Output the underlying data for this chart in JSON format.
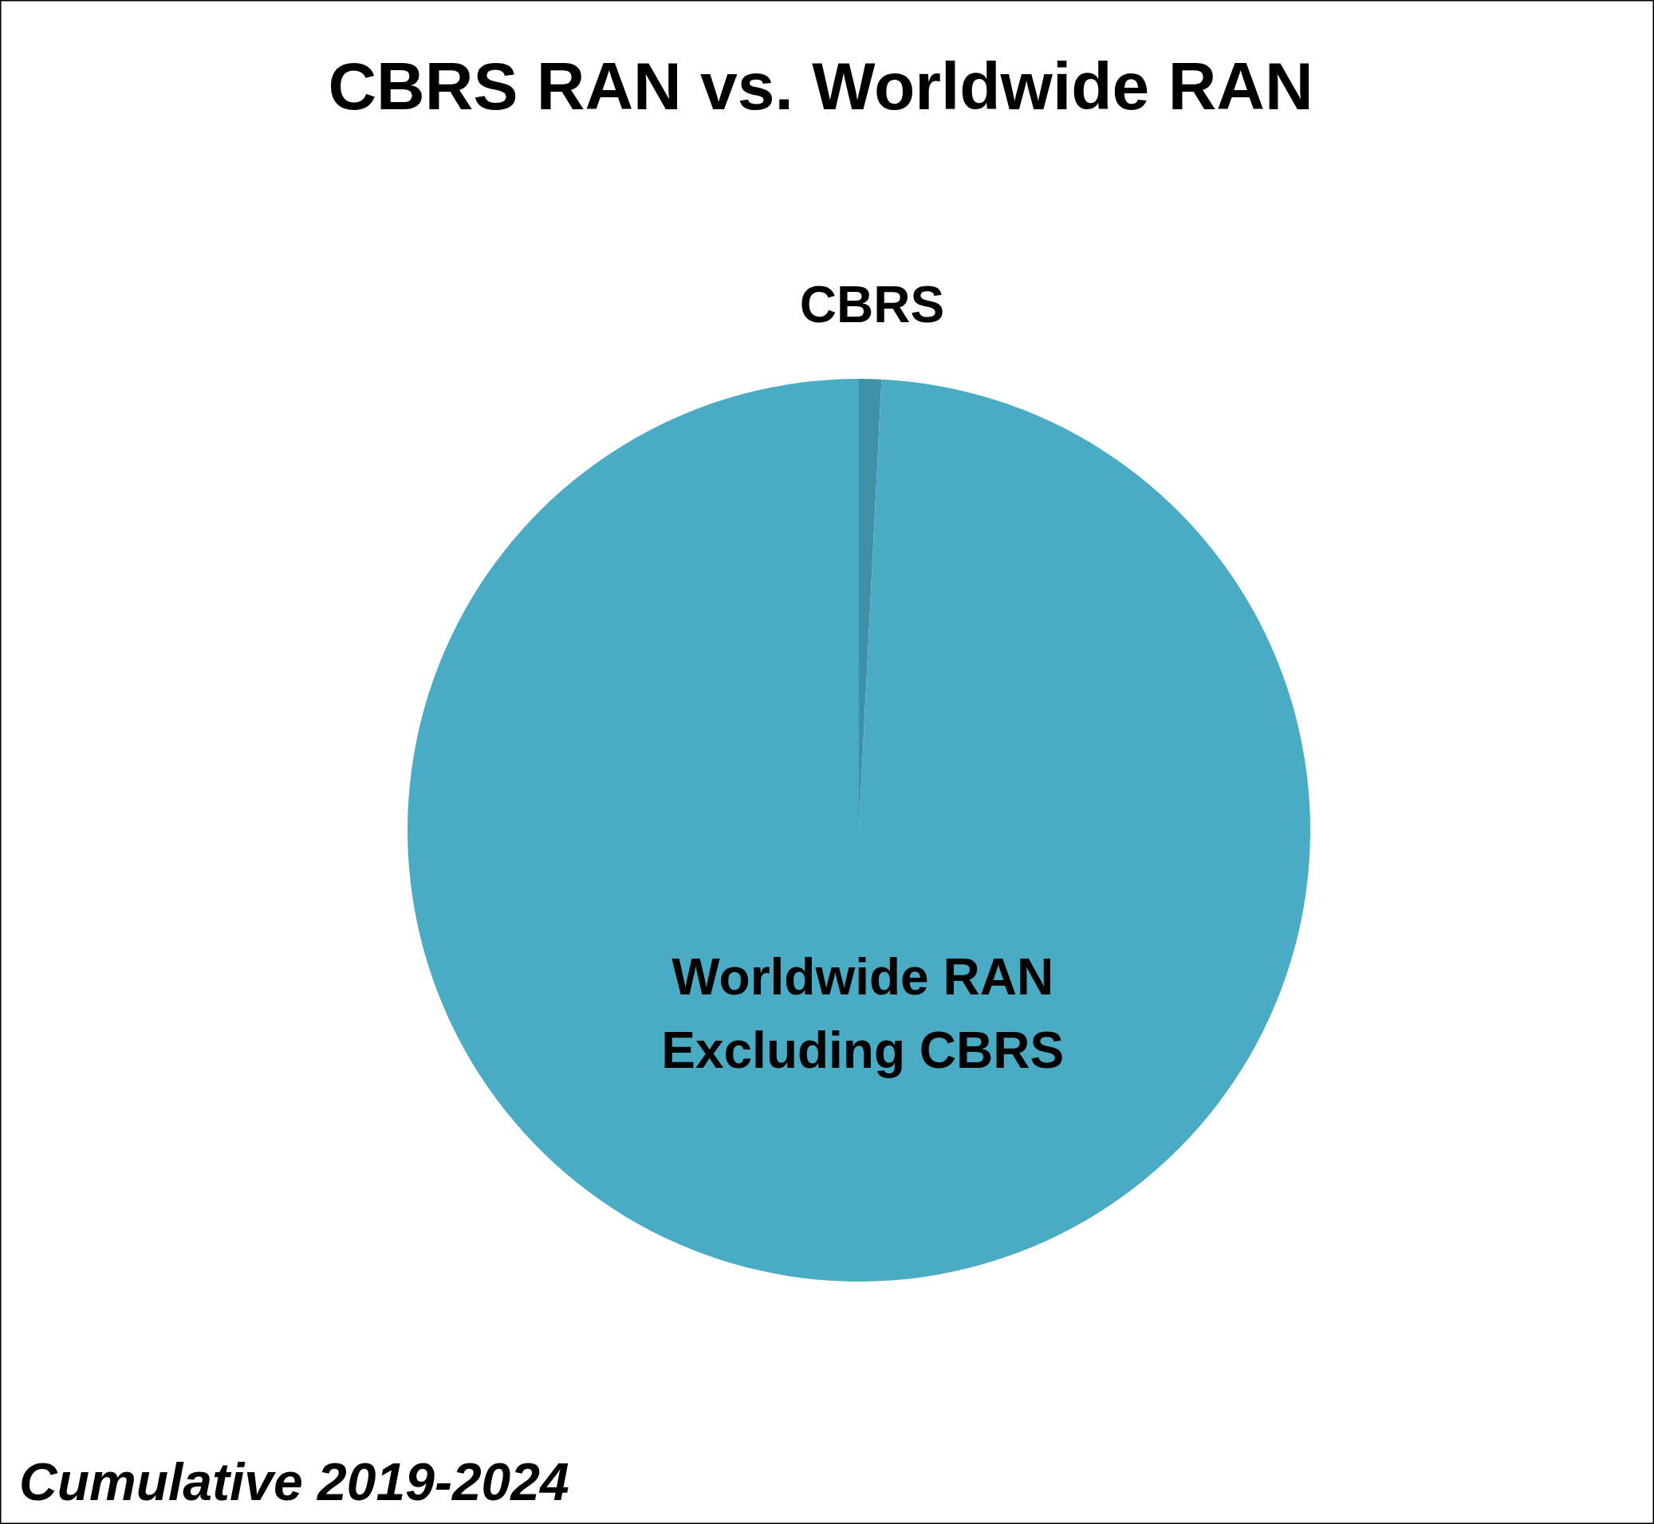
{
  "chart_data": {
    "type": "pie",
    "title": "CBRS RAN vs. Worldwide RAN",
    "categories": [
      "CBRS",
      "Worldwide RAN\nExcluding CBRS"
    ],
    "values": [
      0.8,
      99.2
    ],
    "colors": [
      "#3f8fa6",
      "#4aabc5"
    ],
    "annotations": [
      "Cumulative 2019-2024"
    ]
  }
}
